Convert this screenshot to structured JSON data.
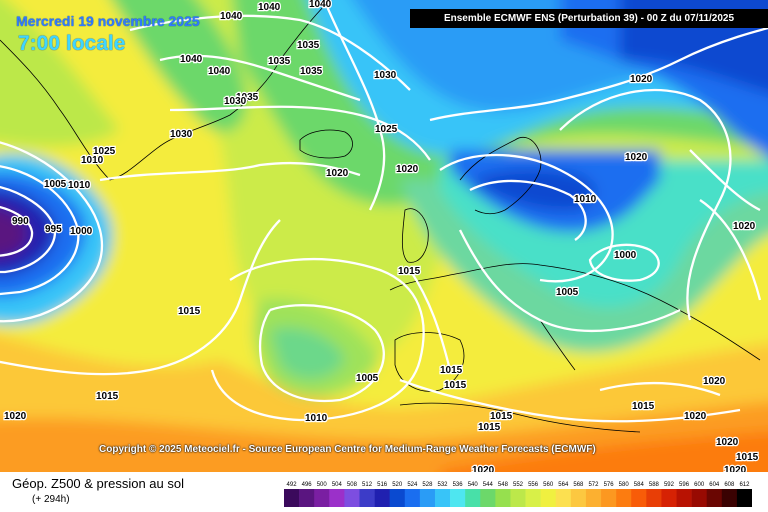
{
  "header": {
    "date": "Mercredi 19 novembre 2025",
    "local_time": "7:00 locale",
    "run_info": "Ensemble ECMWF ENS  (Perturbation 39)  - 00 Z du 07/11/2025"
  },
  "copyright": "Copyright © 2025 Meteociel.fr - Source European Centre for Medium-Range Weather Forecasts (ECMWF)",
  "legend": {
    "title": "Géop. Z500 & pression au sol",
    "forecast_hour": "(+ 294h)",
    "scale": [
      "492",
      "496",
      "500",
      "504",
      "508",
      "512",
      "516",
      "520",
      "524",
      "528",
      "532",
      "536",
      "540",
      "544",
      "548",
      "552",
      "556",
      "560",
      "564",
      "568",
      "572",
      "576",
      "580",
      "584",
      "588",
      "592",
      "596",
      "600",
      "604",
      "608",
      "612"
    ],
    "scale_colors": [
      "#3b0a5c",
      "#5a1580",
      "#7a1fa2",
      "#9b30c9",
      "#7d4ee0",
      "#3c3cc8",
      "#2020b0",
      "#0a4ad0",
      "#1a6ef0",
      "#2a9cf6",
      "#38c4f8",
      "#4ee6f0",
      "#48e0a8",
      "#6cd86a",
      "#96e04e",
      "#bce84a",
      "#d8f048",
      "#f0f040",
      "#fce050",
      "#fcc840",
      "#fcb030",
      "#fc9820",
      "#fc7c10",
      "#f85c08",
      "#e83e06",
      "#d62204",
      "#b81202",
      "#980a02",
      "#6a0602",
      "#3a0202",
      "#000000"
    ]
  },
  "pressure_labels": [
    {
      "text": "1040"
    },
    {
      "text": "1040"
    },
    {
      "text": "1040"
    },
    {
      "text": "1040"
    },
    {
      "text": "1040"
    },
    {
      "text": "1035"
    },
    {
      "text": "1035"
    },
    {
      "text": "1035"
    },
    {
      "text": "1035"
    },
    {
      "text": "1030"
    },
    {
      "text": "1030"
    },
    {
      "text": "1030"
    },
    {
      "text": "1025"
    },
    {
      "text": "1025"
    },
    {
      "text": "1020"
    },
    {
      "text": "1020"
    },
    {
      "text": "1020"
    },
    {
      "text": "1020"
    },
    {
      "text": "1020"
    },
    {
      "text": "1020"
    },
    {
      "text": "1015"
    },
    {
      "text": "1010"
    },
    {
      "text": "1010"
    },
    {
      "text": "1005"
    },
    {
      "text": "990"
    },
    {
      "text": "995"
    },
    {
      "text": "1000"
    },
    {
      "text": "1010"
    },
    {
      "text": "1000"
    },
    {
      "text": "1005"
    },
    {
      "text": "1015"
    },
    {
      "text": "1015"
    },
    {
      "text": "1005"
    },
    {
      "text": "1010"
    },
    {
      "text": "1015"
    },
    {
      "text": "1015"
    },
    {
      "text": "1015"
    },
    {
      "text": "1015"
    },
    {
      "text": "1015"
    },
    {
      "text": "1020"
    },
    {
      "text": "1020"
    },
    {
      "text": "1020"
    },
    {
      "text": "1020"
    },
    {
      "text": "1020"
    },
    {
      "text": "1015"
    }
  ]
}
